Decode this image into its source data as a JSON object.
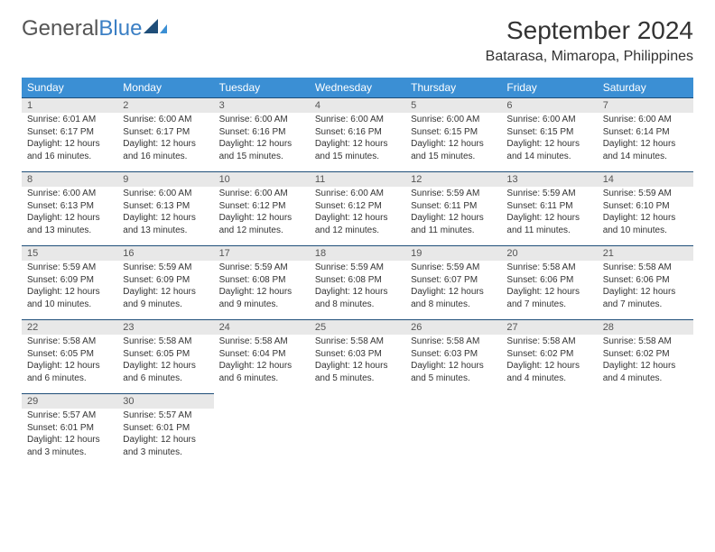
{
  "logo": {
    "text1": "General",
    "text2": "Blue"
  },
  "title": "September 2024",
  "location": "Batarasa, Mimaropa, Philippines",
  "colors": {
    "header_bg": "#3b8fd4",
    "header_text": "#ffffff",
    "daynum_bg": "#e8e8e8",
    "daynum_border": "#1f4e79",
    "body_bg": "#ffffff",
    "text": "#333333",
    "logo_gray": "#555555",
    "logo_blue": "#3b7fc4"
  },
  "dayHeaders": [
    "Sunday",
    "Monday",
    "Tuesday",
    "Wednesday",
    "Thursday",
    "Friday",
    "Saturday"
  ],
  "weeks": [
    {
      "nums": [
        "1",
        "2",
        "3",
        "4",
        "5",
        "6",
        "7"
      ],
      "details": [
        {
          "sunrise": "Sunrise: 6:01 AM",
          "sunset": "Sunset: 6:17 PM",
          "day1": "Daylight: 12 hours",
          "day2": "and 16 minutes."
        },
        {
          "sunrise": "Sunrise: 6:00 AM",
          "sunset": "Sunset: 6:17 PM",
          "day1": "Daylight: 12 hours",
          "day2": "and 16 minutes."
        },
        {
          "sunrise": "Sunrise: 6:00 AM",
          "sunset": "Sunset: 6:16 PM",
          "day1": "Daylight: 12 hours",
          "day2": "and 15 minutes."
        },
        {
          "sunrise": "Sunrise: 6:00 AM",
          "sunset": "Sunset: 6:16 PM",
          "day1": "Daylight: 12 hours",
          "day2": "and 15 minutes."
        },
        {
          "sunrise": "Sunrise: 6:00 AM",
          "sunset": "Sunset: 6:15 PM",
          "day1": "Daylight: 12 hours",
          "day2": "and 15 minutes."
        },
        {
          "sunrise": "Sunrise: 6:00 AM",
          "sunset": "Sunset: 6:15 PM",
          "day1": "Daylight: 12 hours",
          "day2": "and 14 minutes."
        },
        {
          "sunrise": "Sunrise: 6:00 AM",
          "sunset": "Sunset: 6:14 PM",
          "day1": "Daylight: 12 hours",
          "day2": "and 14 minutes."
        }
      ]
    },
    {
      "nums": [
        "8",
        "9",
        "10",
        "11",
        "12",
        "13",
        "14"
      ],
      "details": [
        {
          "sunrise": "Sunrise: 6:00 AM",
          "sunset": "Sunset: 6:13 PM",
          "day1": "Daylight: 12 hours",
          "day2": "and 13 minutes."
        },
        {
          "sunrise": "Sunrise: 6:00 AM",
          "sunset": "Sunset: 6:13 PM",
          "day1": "Daylight: 12 hours",
          "day2": "and 13 minutes."
        },
        {
          "sunrise": "Sunrise: 6:00 AM",
          "sunset": "Sunset: 6:12 PM",
          "day1": "Daylight: 12 hours",
          "day2": "and 12 minutes."
        },
        {
          "sunrise": "Sunrise: 6:00 AM",
          "sunset": "Sunset: 6:12 PM",
          "day1": "Daylight: 12 hours",
          "day2": "and 12 minutes."
        },
        {
          "sunrise": "Sunrise: 5:59 AM",
          "sunset": "Sunset: 6:11 PM",
          "day1": "Daylight: 12 hours",
          "day2": "and 11 minutes."
        },
        {
          "sunrise": "Sunrise: 5:59 AM",
          "sunset": "Sunset: 6:11 PM",
          "day1": "Daylight: 12 hours",
          "day2": "and 11 minutes."
        },
        {
          "sunrise": "Sunrise: 5:59 AM",
          "sunset": "Sunset: 6:10 PM",
          "day1": "Daylight: 12 hours",
          "day2": "and 10 minutes."
        }
      ]
    },
    {
      "nums": [
        "15",
        "16",
        "17",
        "18",
        "19",
        "20",
        "21"
      ],
      "details": [
        {
          "sunrise": "Sunrise: 5:59 AM",
          "sunset": "Sunset: 6:09 PM",
          "day1": "Daylight: 12 hours",
          "day2": "and 10 minutes."
        },
        {
          "sunrise": "Sunrise: 5:59 AM",
          "sunset": "Sunset: 6:09 PM",
          "day1": "Daylight: 12 hours",
          "day2": "and 9 minutes."
        },
        {
          "sunrise": "Sunrise: 5:59 AM",
          "sunset": "Sunset: 6:08 PM",
          "day1": "Daylight: 12 hours",
          "day2": "and 9 minutes."
        },
        {
          "sunrise": "Sunrise: 5:59 AM",
          "sunset": "Sunset: 6:08 PM",
          "day1": "Daylight: 12 hours",
          "day2": "and 8 minutes."
        },
        {
          "sunrise": "Sunrise: 5:59 AM",
          "sunset": "Sunset: 6:07 PM",
          "day1": "Daylight: 12 hours",
          "day2": "and 8 minutes."
        },
        {
          "sunrise": "Sunrise: 5:58 AM",
          "sunset": "Sunset: 6:06 PM",
          "day1": "Daylight: 12 hours",
          "day2": "and 7 minutes."
        },
        {
          "sunrise": "Sunrise: 5:58 AM",
          "sunset": "Sunset: 6:06 PM",
          "day1": "Daylight: 12 hours",
          "day2": "and 7 minutes."
        }
      ]
    },
    {
      "nums": [
        "22",
        "23",
        "24",
        "25",
        "26",
        "27",
        "28"
      ],
      "details": [
        {
          "sunrise": "Sunrise: 5:58 AM",
          "sunset": "Sunset: 6:05 PM",
          "day1": "Daylight: 12 hours",
          "day2": "and 6 minutes."
        },
        {
          "sunrise": "Sunrise: 5:58 AM",
          "sunset": "Sunset: 6:05 PM",
          "day1": "Daylight: 12 hours",
          "day2": "and 6 minutes."
        },
        {
          "sunrise": "Sunrise: 5:58 AM",
          "sunset": "Sunset: 6:04 PM",
          "day1": "Daylight: 12 hours",
          "day2": "and 6 minutes."
        },
        {
          "sunrise": "Sunrise: 5:58 AM",
          "sunset": "Sunset: 6:03 PM",
          "day1": "Daylight: 12 hours",
          "day2": "and 5 minutes."
        },
        {
          "sunrise": "Sunrise: 5:58 AM",
          "sunset": "Sunset: 6:03 PM",
          "day1": "Daylight: 12 hours",
          "day2": "and 5 minutes."
        },
        {
          "sunrise": "Sunrise: 5:58 AM",
          "sunset": "Sunset: 6:02 PM",
          "day1": "Daylight: 12 hours",
          "day2": "and 4 minutes."
        },
        {
          "sunrise": "Sunrise: 5:58 AM",
          "sunset": "Sunset: 6:02 PM",
          "day1": "Daylight: 12 hours",
          "day2": "and 4 minutes."
        }
      ]
    },
    {
      "nums": [
        "29",
        "30",
        "",
        "",
        "",
        "",
        ""
      ],
      "details": [
        {
          "sunrise": "Sunrise: 5:57 AM",
          "sunset": "Sunset: 6:01 PM",
          "day1": "Daylight: 12 hours",
          "day2": "and 3 minutes."
        },
        {
          "sunrise": "Sunrise: 5:57 AM",
          "sunset": "Sunset: 6:01 PM",
          "day1": "Daylight: 12 hours",
          "day2": "and 3 minutes."
        },
        null,
        null,
        null,
        null,
        null
      ]
    }
  ]
}
